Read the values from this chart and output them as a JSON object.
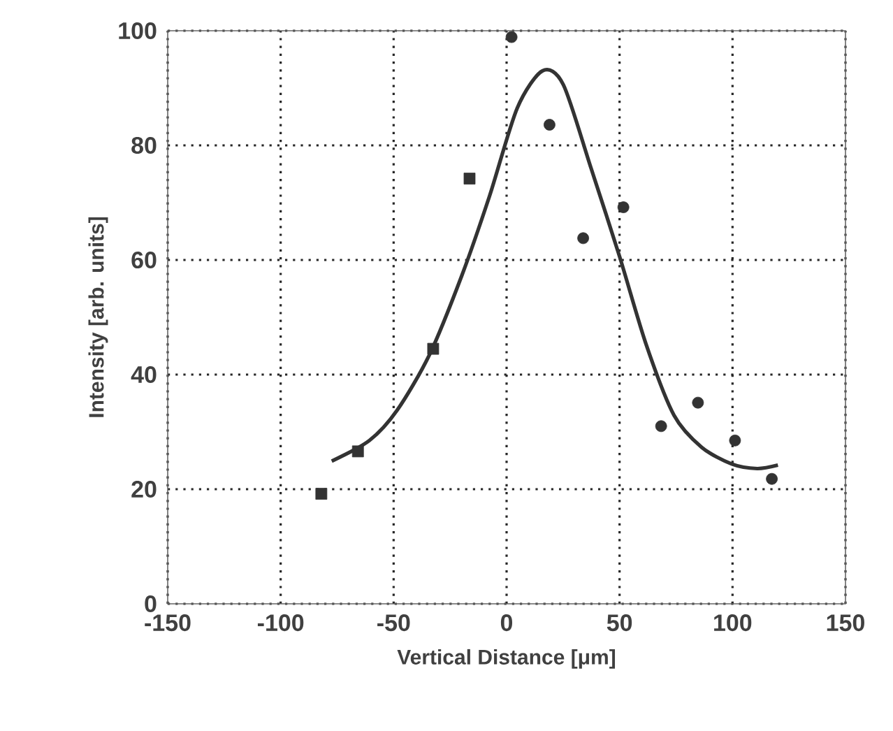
{
  "chart_data": {
    "type": "scatter",
    "xlabel": "Vertical Distance [μm]",
    "ylabel": "Intensity [arb. units]",
    "xlim": [
      -150,
      150
    ],
    "ylim": [
      0,
      100
    ],
    "xticks": [
      -150,
      -100,
      -50,
      0,
      50,
      100,
      150
    ],
    "yticks": [
      0,
      20,
      40,
      60,
      80,
      100
    ],
    "grid": true,
    "series": [
      {
        "marker": "square",
        "color": "#333333",
        "x": [
          -82,
          -65.8,
          -32.5,
          -16.4
        ],
        "values": [
          19.2,
          26.6,
          44.5,
          74.2
        ]
      },
      {
        "marker": "circle",
        "color": "#333333",
        "x": [
          2.2,
          19,
          33.9,
          51.7,
          68.4,
          84.7,
          101.1,
          117.4
        ],
        "values": [
          98.9,
          83.6,
          63.8,
          69.2,
          31.0,
          35.1,
          28.5,
          21.8
        ]
      },
      {
        "type": "line",
        "marker": "none",
        "color": "#333333",
        "x": [
          -77.4,
          -60.7,
          -48.4,
          -34.1,
          -19.9,
          -7.6,
          4.7,
          15.9,
          25.1,
          37.4,
          50,
          61.9,
          74.1,
          86.4,
          99.6,
          110.9,
          120.1
        ],
        "values": [
          24.9,
          28.5,
          33.8,
          43.5,
          57.2,
          71.1,
          86.5,
          93.0,
          90.6,
          76.0,
          60.6,
          45.1,
          32.9,
          27.3,
          24.4,
          23.6,
          24.2
        ]
      }
    ]
  }
}
